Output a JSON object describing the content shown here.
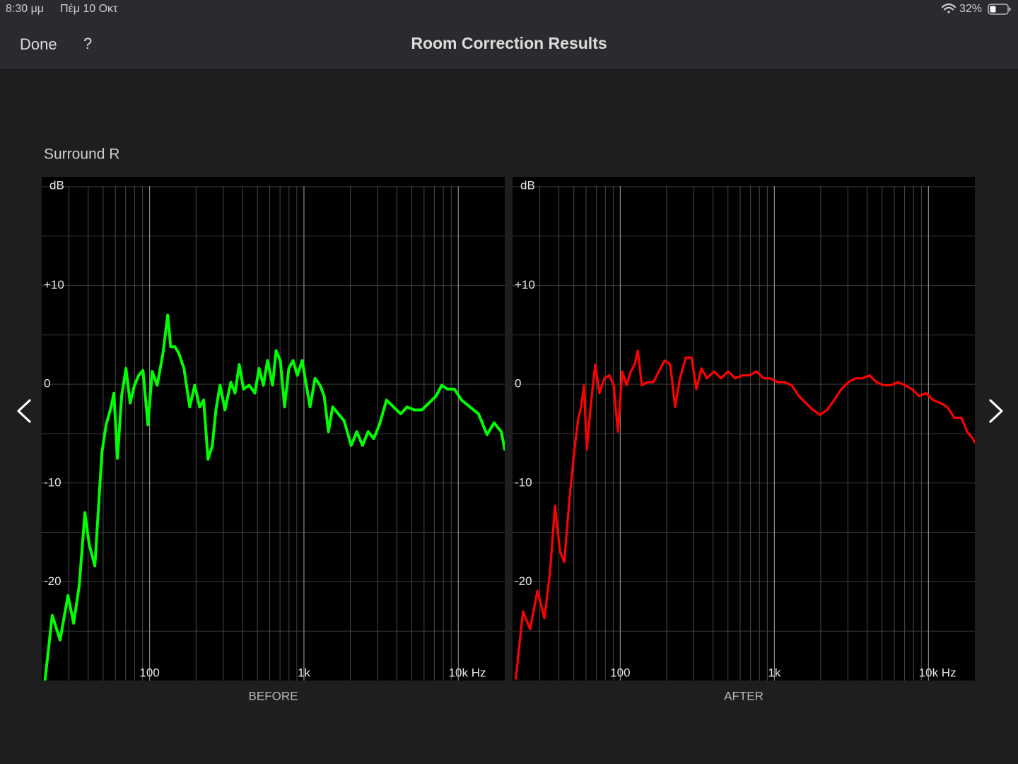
{
  "status_bar": {
    "time": "8:30 μμ",
    "date": "Πέμ 10 Οκτ",
    "battery": "32%"
  },
  "nav_bar": {
    "done": "Done",
    "help": "?",
    "title": "Room Correction Results"
  },
  "section_title": "Surround R",
  "chart_data": [
    {
      "type": "line",
      "caption": "BEFORE",
      "y_label": "dB",
      "xscale": "log",
      "color": "#00ff00",
      "xlim": [
        20,
        20000
      ],
      "ylim": [
        -30,
        21
      ],
      "xticks": [
        100,
        {
          "value": 1000,
          "label": "1k"
        },
        {
          "value": 10000,
          "label": "10k Hz"
        }
      ],
      "xgrid": [
        30,
        40,
        50,
        60,
        70,
        80,
        90,
        200,
        300,
        400,
        500,
        600,
        700,
        800,
        900,
        2000,
        3000,
        4000,
        5000,
        6000,
        7000,
        8000,
        9000
      ],
      "yticks": [
        {
          "value": 10,
          "label": "+10"
        },
        0,
        -10,
        -20
      ],
      "ygrid": [
        -25,
        -20,
        -15,
        -10,
        -5,
        0,
        5,
        10,
        15,
        20
      ],
      "x": [
        21,
        23.4,
        26.3,
        29.6,
        32.2,
        35,
        38.1,
        40.6,
        44.2,
        49.1,
        52.3,
        56.3,
        58.7,
        61.9,
        65.9,
        70.3,
        74.9,
        79.8,
        85,
        90.6,
        97.5,
        104,
        112,
        122,
        131,
        137,
        146,
        155,
        167,
        182,
        196,
        211,
        224,
        239,
        255,
        269,
        286,
        308,
        336,
        358,
        381,
        406,
        442,
        481,
        512,
        546,
        581,
        626,
        660,
        703,
        749,
        798,
        850,
        906,
        975,
        1028,
        1096,
        1180,
        1271,
        1353,
        1442,
        1535,
        1671,
        1820,
        2023,
        2199,
        2395,
        2606,
        2833,
        3084,
        3428,
        3811,
        4237,
        4659,
        5178,
        5813,
        6459,
        7178,
        7814,
        8500,
        9445,
        10500,
        11914,
        13523,
        15350,
        17060,
        18970,
        20000
      ],
      "values": [
        -30,
        -23.4,
        -25.9,
        -21.4,
        -24.2,
        -20.4,
        -13,
        -16.2,
        -18.4,
        -6.9,
        -4.1,
        -2.3,
        -0.9,
        -7.5,
        -1.2,
        1.6,
        -1.9,
        -0.1,
        0.9,
        1.4,
        -4.1,
        1.3,
        -0.1,
        3.1,
        7,
        3.8,
        3.8,
        3.1,
        1.6,
        -2.3,
        -0.1,
        -2.3,
        -1.6,
        -7.6,
        -6.2,
        -2.6,
        -0.1,
        -2.6,
        0.2,
        -0.9,
        2,
        -0.5,
        -0.1,
        -0.9,
        1.6,
        -0.1,
        2.4,
        -0.1,
        3.4,
        2.4,
        -2.3,
        1.6,
        2.4,
        0.9,
        2.4,
        0.2,
        -2.3,
        0.6,
        -0.1,
        -1.2,
        -4.8,
        -2.3,
        -3,
        -3.7,
        -6.2,
        -4.8,
        -6.2,
        -4.8,
        -5.5,
        -4.1,
        -1.6,
        -2.3,
        -3,
        -2.3,
        -2.6,
        -2.6,
        -1.9,
        -1.2,
        -0.1,
        -0.5,
        -0.5,
        -1.6,
        -2.3,
        -3,
        -5.1,
        -3.9,
        -4.8,
        -6.6
      ]
    },
    {
      "type": "line",
      "caption": "AFTER",
      "y_label": "dB",
      "xscale": "log",
      "color": "#ff0000",
      "xlim": [
        20,
        20000
      ],
      "ylim": [
        -30,
        21
      ],
      "xticks": [
        100,
        {
          "value": 1000,
          "label": "1k"
        },
        {
          "value": 10000,
          "label": "10k Hz"
        }
      ],
      "xgrid": [
        30,
        40,
        50,
        60,
        70,
        80,
        90,
        200,
        300,
        400,
        500,
        600,
        700,
        800,
        900,
        2000,
        3000,
        4000,
        5000,
        6000,
        7000,
        8000,
        9000
      ],
      "yticks": [
        {
          "value": 10,
          "label": "+10"
        },
        0,
        -10,
        -20
      ],
      "ygrid": [
        -25,
        -20,
        -15,
        -10,
        -5,
        0,
        5,
        10,
        15,
        20
      ],
      "x": [
        21,
        23.4,
        26,
        29,
        32.2,
        35,
        37.7,
        40.6,
        43.3,
        47.1,
        50.2,
        53.5,
        55.8,
        58.1,
        60.7,
        64.6,
        68.8,
        73.3,
        78.9,
        85,
        90.6,
        96.5,
        103,
        110,
        117,
        124,
        130,
        138,
        150,
        164,
        178,
        194,
        211,
        227,
        244,
        266,
        290,
        312,
        336,
        365,
        406,
        451,
        501,
        557,
        620,
        689,
        766,
        850,
        944,
        1050,
        1167,
        1297,
        1442,
        1603,
        1782,
        1978,
        2199,
        2444,
        2717,
        3020,
        3357,
        3731,
        4147,
        4608,
        5118,
        5688,
        6325,
        7031,
        7814,
        8690,
        9647,
        10717,
        11914,
        13245,
        14724,
        16367,
        17825,
        19370,
        20000
      ],
      "values": [
        -29.8,
        -23,
        -24.8,
        -20.9,
        -23.7,
        -19.1,
        -12.3,
        -16.9,
        -18,
        -11.2,
        -6.9,
        -3.4,
        -2.3,
        -0.1,
        -6.6,
        -1.9,
        2,
        -0.9,
        0.6,
        0.9,
        -0.1,
        -4.8,
        1.3,
        -0.1,
        1.3,
        2,
        3.4,
        -0.1,
        0.2,
        0.2,
        1.3,
        2.4,
        2,
        -2.3,
        0.6,
        2.7,
        2.7,
        -0.5,
        1.6,
        0.6,
        1.3,
        0.6,
        1.3,
        0.6,
        0.9,
        0.9,
        1.3,
        0.6,
        0.6,
        0.2,
        0.2,
        -0.1,
        -1.2,
        -1.9,
        -2.6,
        -3.1,
        -2.6,
        -1.6,
        -0.5,
        0.2,
        0.6,
        0.6,
        0.9,
        0.2,
        -0.1,
        -0.1,
        0.2,
        -0.1,
        -0.5,
        -1.2,
        -0.9,
        -1.6,
        -1.9,
        -2.3,
        -3.4,
        -3.4,
        -4.8,
        -5.5,
        -5.9
      ]
    }
  ]
}
